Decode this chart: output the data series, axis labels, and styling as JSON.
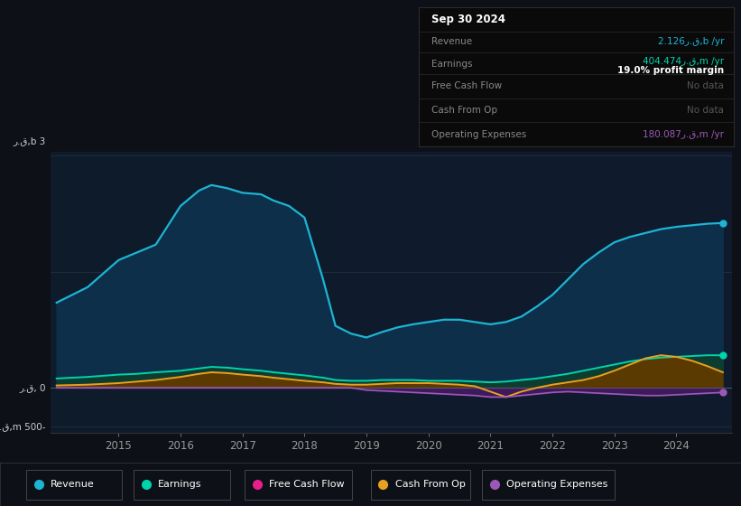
{
  "background_color": "#0d1117",
  "plot_bg_color": "#0d1b2a",
  "years": [
    2014.0,
    2014.5,
    2015.0,
    2015.3,
    2015.6,
    2016.0,
    2016.3,
    2016.5,
    2016.75,
    2017.0,
    2017.3,
    2017.5,
    2017.75,
    2018.0,
    2018.3,
    2018.5,
    2018.75,
    2019.0,
    2019.25,
    2019.5,
    2019.75,
    2020.0,
    2020.25,
    2020.5,
    2020.75,
    2021.0,
    2021.25,
    2021.5,
    2021.75,
    2022.0,
    2022.25,
    2022.5,
    2022.75,
    2023.0,
    2023.25,
    2023.5,
    2023.75,
    2024.0,
    2024.25,
    2024.5,
    2024.75
  ],
  "revenue": [
    1.1,
    1.3,
    1.65,
    1.75,
    1.85,
    2.35,
    2.55,
    2.62,
    2.58,
    2.52,
    2.5,
    2.42,
    2.35,
    2.2,
    1.4,
    0.8,
    0.7,
    0.65,
    0.72,
    0.78,
    0.82,
    0.85,
    0.88,
    0.88,
    0.85,
    0.82,
    0.85,
    0.92,
    1.05,
    1.2,
    1.4,
    1.6,
    1.75,
    1.88,
    1.95,
    2.0,
    2.05,
    2.08,
    2.1,
    2.12,
    2.13
  ],
  "earnings": [
    0.12,
    0.14,
    0.17,
    0.18,
    0.2,
    0.22,
    0.25,
    0.27,
    0.26,
    0.24,
    0.22,
    0.2,
    0.18,
    0.16,
    0.13,
    0.1,
    0.09,
    0.09,
    0.1,
    0.1,
    0.1,
    0.09,
    0.09,
    0.09,
    0.08,
    0.07,
    0.08,
    0.1,
    0.12,
    0.15,
    0.18,
    0.22,
    0.26,
    0.3,
    0.34,
    0.37,
    0.39,
    0.4,
    0.41,
    0.42,
    0.42
  ],
  "cash_from_op": [
    0.03,
    0.04,
    0.06,
    0.08,
    0.1,
    0.14,
    0.18,
    0.2,
    0.19,
    0.17,
    0.15,
    0.13,
    0.11,
    0.09,
    0.07,
    0.05,
    0.04,
    0.04,
    0.05,
    0.06,
    0.06,
    0.06,
    0.05,
    0.04,
    0.02,
    -0.05,
    -0.12,
    -0.05,
    0.0,
    0.04,
    0.07,
    0.1,
    0.15,
    0.22,
    0.3,
    0.38,
    0.42,
    0.4,
    0.35,
    0.28,
    0.2
  ],
  "op_expenses": [
    0.0,
    0.0,
    0.0,
    0.0,
    0.0,
    0.0,
    0.0,
    0.0,
    0.0,
    0.0,
    0.0,
    0.0,
    0.0,
    0.0,
    0.0,
    0.0,
    0.0,
    -0.03,
    -0.04,
    -0.05,
    -0.06,
    -0.07,
    -0.08,
    -0.09,
    -0.1,
    -0.12,
    -0.12,
    -0.1,
    -0.08,
    -0.06,
    -0.05,
    -0.06,
    -0.07,
    -0.08,
    -0.09,
    -0.1,
    -0.1,
    -0.09,
    -0.08,
    -0.07,
    -0.06
  ],
  "revenue_color": "#1eb4d4",
  "earnings_color": "#00d4aa",
  "cash_from_op_color": "#e8a020",
  "op_expenses_color": "#9b59b6",
  "free_cash_flow_color": "#e91e8c",
  "revenue_fill": "#0d2f4a",
  "earnings_fill": "#0d3d30",
  "cash_from_op_fill_pos": "#5a3a00",
  "cash_from_op_fill_neg": "#6a1a00",
  "op_expenses_fill": "#3d1a5a",
  "shaded_start": 2018.5,
  "shaded_end": 2024.75,
  "xlim_min": 2013.9,
  "xlim_max": 2024.9,
  "ylim_min": -0.58,
  "ylim_max": 3.05,
  "y_top": 3.0,
  "y_mid": 0.0,
  "y_bot": -0.5,
  "xtick_positions": [
    2015,
    2016,
    2017,
    2018,
    2019,
    2020,
    2021,
    2022,
    2023,
    2024
  ],
  "xtick_labels": [
    "2015",
    "2016",
    "2017",
    "2018",
    "2019",
    "2020",
    "2021",
    "2022",
    "2023",
    "2024"
  ],
  "legend_labels": [
    "Revenue",
    "Earnings",
    "Free Cash Flow",
    "Cash From Op",
    "Operating Expenses"
  ],
  "legend_colors": [
    "#1eb4d4",
    "#00d4aa",
    "#e91e8c",
    "#e8a020",
    "#9b59b6"
  ]
}
